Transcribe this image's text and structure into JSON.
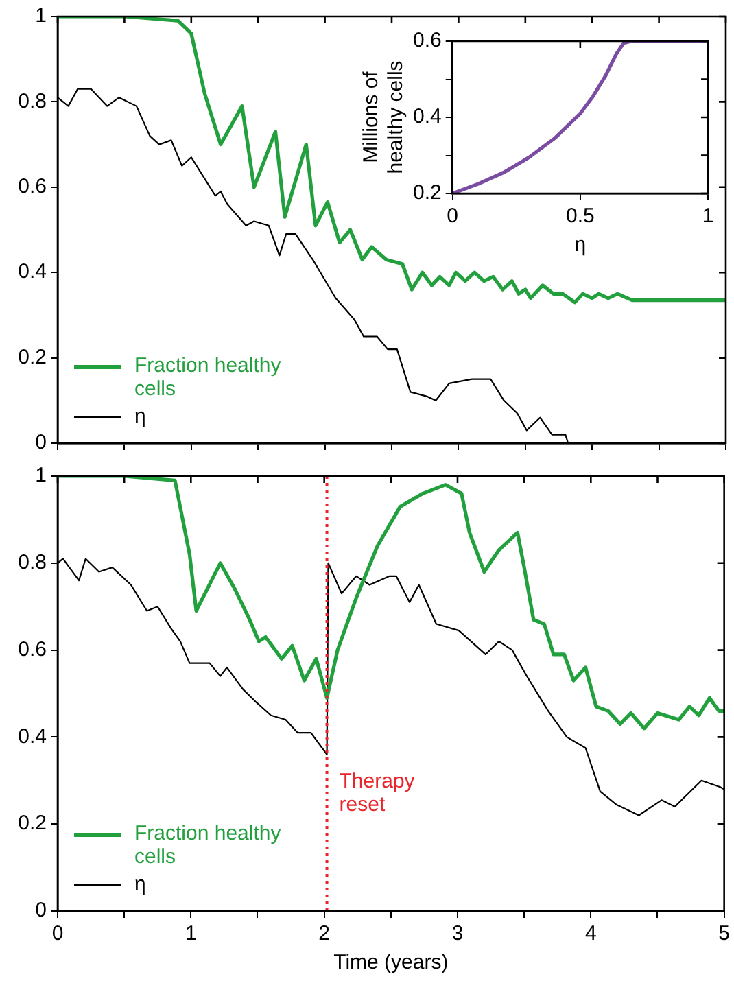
{
  "chart_data": [
    {
      "type": "line",
      "xlim": [
        0,
        5
      ],
      "xticks": [
        0,
        {
          "value": 0.5,
          "label": null
        },
        1,
        {
          "value": 1.5,
          "label": null
        },
        2,
        {
          "value": 2.5,
          "label": null
        },
        3,
        {
          "value": 3.5,
          "label": null
        },
        4,
        {
          "value": 4.5,
          "label": null
        },
        5
      ],
      "ylim": [
        0,
        1
      ],
      "yticks": [
        0,
        0.2,
        0.4,
        0.6,
        0.8,
        1
      ],
      "tick_labels": "y",
      "legend": "bottom left",
      "marker": "none",
      "line_style": "solid",
      "series": [
        {
          "name": "Fraction healthy cells",
          "color": "#23a03e",
          "x": [
            0,
            0.5,
            0.9,
            1.0,
            1.1,
            1.22,
            1.38,
            1.47,
            1.63,
            1.7,
            1.86,
            1.93,
            2.02,
            2.11,
            2.19,
            2.28,
            2.35,
            2.46,
            2.58,
            2.65,
            2.73,
            2.8,
            2.86,
            2.93,
            2.98,
            3.05,
            3.12,
            3.19,
            3.26,
            3.33,
            3.4,
            3.45,
            3.5,
            3.54,
            3.63,
            3.71,
            3.78,
            3.87,
            3.93,
            4.0,
            4.05,
            4.12,
            4.19,
            4.3,
            4.5,
            4.7,
            5
          ],
          "values": [
            1,
            1,
            0.99,
            0.96,
            0.82,
            0.7,
            0.79,
            0.6,
            0.73,
            0.53,
            0.7,
            0.51,
            0.565,
            0.47,
            0.5,
            0.43,
            0.46,
            0.43,
            0.42,
            0.36,
            0.4,
            0.37,
            0.39,
            0.37,
            0.4,
            0.38,
            0.4,
            0.38,
            0.39,
            0.36,
            0.38,
            0.35,
            0.36,
            0.34,
            0.37,
            0.35,
            0.35,
            0.33,
            0.35,
            0.34,
            0.35,
            0.34,
            0.35,
            0.335,
            0.335,
            0.335,
            0.335
          ]
        },
        {
          "name": "η",
          "color": "#000000",
          "x": [
            0,
            0.08,
            0.15,
            0.25,
            0.37,
            0.46,
            0.59,
            0.69,
            0.76,
            0.85,
            0.93,
            1.0,
            1.18,
            1.22,
            1.27,
            1.41,
            1.47,
            1.58,
            1.66,
            1.71,
            1.78,
            1.91,
            2.08,
            2.22,
            2.29,
            2.39,
            2.47,
            2.54,
            2.64,
            2.76,
            2.83,
            2.93,
            3.1,
            3.24,
            3.34,
            3.44,
            3.51,
            3.61,
            3.7,
            3.8,
            3.82
          ],
          "values": [
            0.81,
            0.79,
            0.83,
            0.83,
            0.79,
            0.81,
            0.79,
            0.72,
            0.7,
            0.71,
            0.65,
            0.67,
            0.58,
            0.59,
            0.56,
            0.51,
            0.52,
            0.51,
            0.44,
            0.49,
            0.49,
            0.43,
            0.34,
            0.29,
            0.25,
            0.25,
            0.22,
            0.22,
            0.12,
            0.11,
            0.1,
            0.14,
            0.15,
            0.15,
            0.1,
            0.07,
            0.03,
            0.06,
            0.02,
            0.02,
            0
          ]
        }
      ]
    },
    {
      "type": "line",
      "xlabel": "η",
      "ylabel": "Millions of healthy cells",
      "xlim": [
        0,
        1
      ],
      "xticks": [
        0,
        0.5,
        1
      ],
      "ylim": [
        0.2,
        0.6
      ],
      "yticks": [
        0.2,
        {
          "value": 0.3,
          "label": null
        },
        0.4,
        {
          "value": 0.5,
          "label": null
        },
        0.6
      ],
      "marker": "none",
      "line_style": "solid",
      "series": [
        {
          "color": "#7a4ca2",
          "x": [
            0,
            0.1,
            0.2,
            0.3,
            0.4,
            0.5,
            0.55,
            0.6,
            0.64,
            0.67,
            0.7,
            1
          ],
          "values": [
            0.2,
            0.225,
            0.255,
            0.295,
            0.345,
            0.41,
            0.455,
            0.51,
            0.565,
            0.595,
            0.6,
            0.6
          ]
        }
      ]
    },
    {
      "type": "line",
      "xlabel": "Time (years)",
      "xlim": [
        0,
        5
      ],
      "xticks": [
        0,
        {
          "value": 0.5,
          "label": null
        },
        1,
        {
          "value": 1.5,
          "label": null
        },
        2,
        {
          "value": 2.5,
          "label": null
        },
        3,
        {
          "value": 3.5,
          "label": null
        },
        4,
        {
          "value": 4.5,
          "label": null
        },
        5
      ],
      "ylim": [
        0,
        1
      ],
      "yticks": [
        0,
        0.2,
        0.4,
        0.6,
        0.8,
        1
      ],
      "legend": "bottom left",
      "marker": "none",
      "line_style": "solid",
      "ref_lines": [
        {
          "axis": "x",
          "value": 2.02,
          "label": "Therapy reset",
          "color": "#e8252b",
          "line_style": "dotted"
        }
      ],
      "series": [
        {
          "name": "Fraction healthy cells",
          "color": "#23a03e",
          "x": [
            0,
            0.5,
            0.88,
            0.99,
            1.04,
            1.22,
            1.33,
            1.44,
            1.51,
            1.56,
            1.68,
            1.76,
            1.85,
            1.94,
            2.02,
            2.1,
            2.24,
            2.4,
            2.57,
            2.74,
            2.91,
            3.03,
            3.09,
            3.2,
            3.31,
            3.45,
            3.5,
            3.57,
            3.65,
            3.72,
            3.8,
            3.87,
            3.96,
            4.04,
            4.13,
            4.22,
            4.3,
            4.4,
            4.5,
            4.66,
            4.74,
            4.81,
            4.89,
            4.96,
            5
          ],
          "values": [
            1,
            1,
            0.99,
            0.82,
            0.69,
            0.8,
            0.74,
            0.67,
            0.62,
            0.63,
            0.58,
            0.61,
            0.53,
            0.58,
            0.49,
            0.6,
            0.72,
            0.84,
            0.93,
            0.96,
            0.98,
            0.96,
            0.87,
            0.78,
            0.83,
            0.87,
            0.79,
            0.67,
            0.66,
            0.59,
            0.59,
            0.53,
            0.56,
            0.47,
            0.46,
            0.43,
            0.455,
            0.42,
            0.455,
            0.44,
            0.47,
            0.45,
            0.49,
            0.46,
            0.46
          ]
        },
        {
          "name": "η",
          "color": "#000000",
          "x": [
            0,
            0.04,
            0.16,
            0.21,
            0.31,
            0.41,
            0.55,
            0.67,
            0.75,
            0.85,
            0.92,
            0.99,
            1.14,
            1.22,
            1.27,
            1.39,
            1.49,
            1.6,
            1.71,
            1.8,
            1.9,
            2.02,
            2.03,
            2.13,
            2.24,
            2.34,
            2.49,
            2.54,
            2.64,
            2.71,
            2.84,
            3.01,
            3.21,
            3.31,
            3.41,
            3.51,
            3.68,
            3.82,
            3.96,
            4.07,
            4.19,
            4.36,
            4.53,
            4.63,
            4.73,
            4.83,
            4.97,
            5
          ],
          "values": [
            0.8,
            0.81,
            0.76,
            0.81,
            0.78,
            0.79,
            0.75,
            0.69,
            0.7,
            0.65,
            0.62,
            0.57,
            0.57,
            0.54,
            0.56,
            0.51,
            0.48,
            0.45,
            0.44,
            0.41,
            0.41,
            0.36,
            0.8,
            0.73,
            0.77,
            0.75,
            0.77,
            0.77,
            0.71,
            0.75,
            0.66,
            0.645,
            0.59,
            0.62,
            0.6,
            0.545,
            0.46,
            0.4,
            0.375,
            0.275,
            0.245,
            0.22,
            0.255,
            0.24,
            0.27,
            0.3,
            0.285,
            0.28
          ]
        }
      ]
    }
  ]
}
